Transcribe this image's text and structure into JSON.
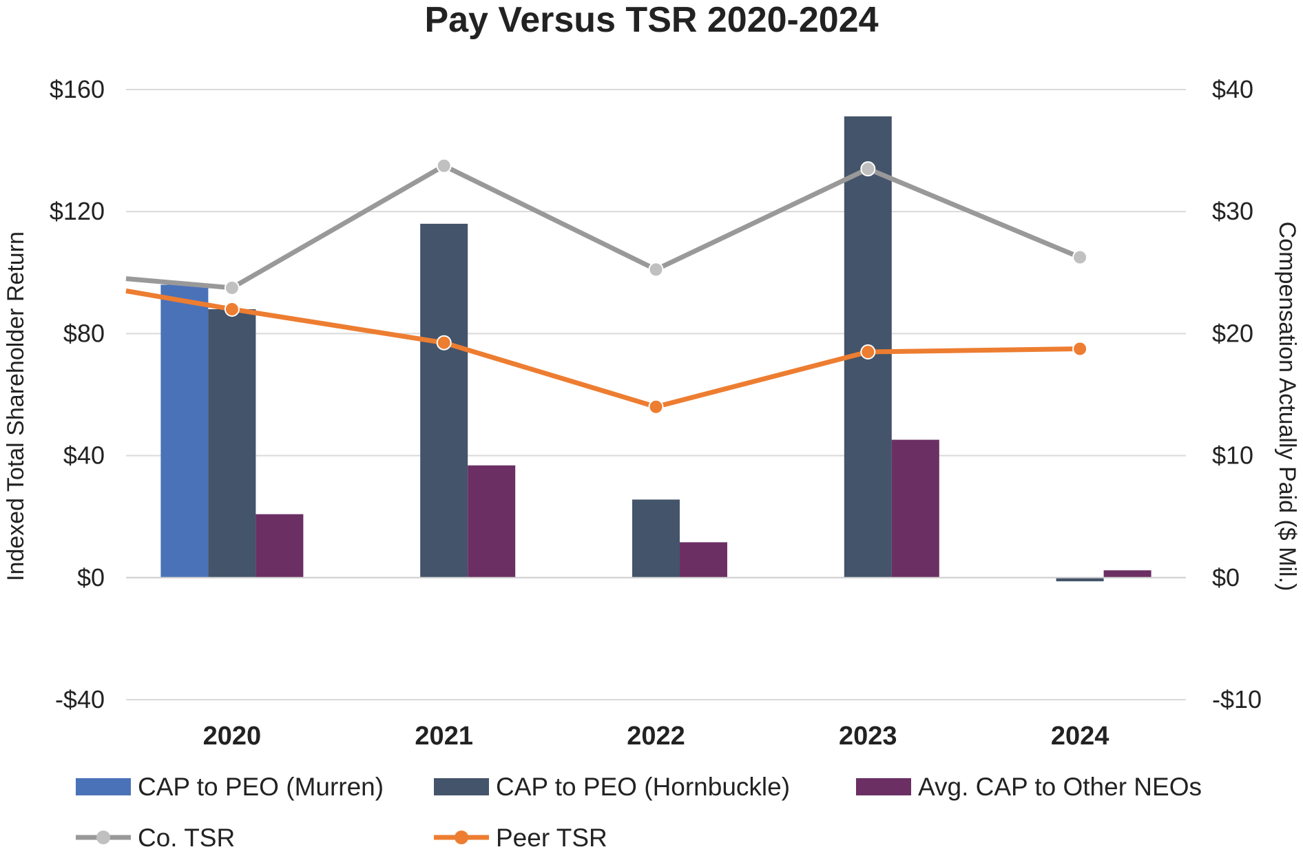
{
  "chart_data": {
    "type": "bar",
    "title": "Pay Versus TSR 2020-2024",
    "categories": [
      "2020",
      "2021",
      "2022",
      "2023",
      "2024"
    ],
    "left_axis": {
      "label": "Indexed Total Shareholder Return",
      "range": [
        -40,
        160
      ],
      "ticks": [
        -40,
        0,
        40,
        80,
        120,
        160
      ],
      "tick_labels": [
        "-$40",
        "$0",
        "$40",
        "$80",
        "$120",
        "$160"
      ]
    },
    "right_axis": {
      "label": "Compensation Actually Paid ($ Mil.)",
      "range": [
        -10,
        40
      ],
      "ticks": [
        -10,
        0,
        10,
        20,
        30,
        40
      ],
      "tick_labels": [
        "-$10",
        "$0",
        "$10",
        "$20",
        "$30",
        "$40"
      ]
    },
    "grid": true,
    "legend_position": "bottom",
    "bar_series": [
      {
        "name": "CAP to PEO (Murren)",
        "axis": "right",
        "color": "#4a72b8",
        "values": [
          24.0,
          null,
          null,
          null,
          null
        ]
      },
      {
        "name": "CAP to PEO (Hornbuckle)",
        "axis": "right",
        "color": "#44546a",
        "values": [
          22.0,
          29.0,
          6.4,
          37.8,
          -0.3
        ]
      },
      {
        "name": "Avg. CAP to Other NEOs",
        "axis": "right",
        "color": "#6b2f63",
        "values": [
          5.2,
          9.2,
          2.9,
          11.3,
          0.6
        ]
      }
    ],
    "line_series": [
      {
        "name": "Co. TSR",
        "axis": "left",
        "color": "#999999",
        "marker_color": "#c0c0c0",
        "start_value": 98,
        "values": [
          95,
          135,
          101,
          134,
          105
        ]
      },
      {
        "name": "Peer TSR",
        "axis": "left",
        "color": "#ed7d31",
        "marker_color": "#ed7d31",
        "start_value": 94,
        "values": [
          88,
          77,
          56,
          74,
          75
        ]
      }
    ]
  }
}
